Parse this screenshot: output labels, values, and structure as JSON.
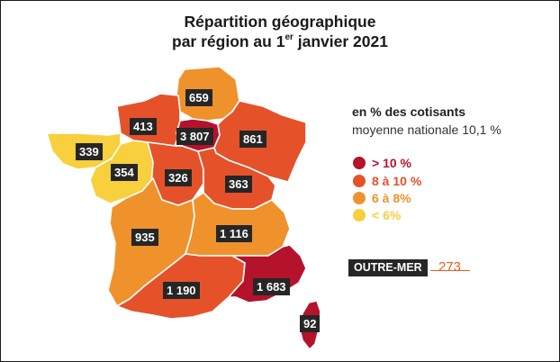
{
  "title": {
    "line1": "Répartition géographique",
    "line2_before": "par région au 1",
    "line2_sup": "er",
    "line2_after": " janvier 2021"
  },
  "colors": {
    "gt10": "#b5122b",
    "8to10": "#e5522a",
    "6to8": "#ef922c",
    "lt6": "#f8cf3d",
    "label_box": "#262626",
    "outre_mer_accent": "#e85d20"
  },
  "legend": {
    "title": "en % des cotisants",
    "subtitle": "moyenne nationale 10,1 %",
    "items": [
      {
        "label": "> 10 %",
        "category": "gt10",
        "color": "#b5122b"
      },
      {
        "label": "8 à 10 %",
        "category": "8to10",
        "color": "#e5522a"
      },
      {
        "label": "6 à 8%",
        "category": "6to8",
        "color": "#ef922c"
      },
      {
        "label": "< 6%",
        "category": "lt6",
        "color": "#f8cf3d"
      }
    ]
  },
  "regions": [
    {
      "id": "hauts-de-france",
      "value": "659",
      "category": "6to8"
    },
    {
      "id": "normandie",
      "value": "413",
      "category": "8to10"
    },
    {
      "id": "ile-de-france",
      "value": "3 807",
      "category": "gt10"
    },
    {
      "id": "grand-est",
      "value": "861",
      "category": "8to10"
    },
    {
      "id": "bretagne",
      "value": "339",
      "category": "lt6"
    },
    {
      "id": "pays-de-la-loire",
      "value": "354",
      "category": "lt6"
    },
    {
      "id": "centre-val-de-loire",
      "value": "326",
      "category": "8to10"
    },
    {
      "id": "bourgogne-franche-comte",
      "value": "363",
      "category": "8to10"
    },
    {
      "id": "nouvelle-aquitaine",
      "value": "935",
      "category": "6to8"
    },
    {
      "id": "auvergne-rhone-alpes",
      "value": "1 116",
      "category": "6to8"
    },
    {
      "id": "occitanie",
      "value": "1 190",
      "category": "8to10"
    },
    {
      "id": "provence-alpes-cote-dazur",
      "value": "1 683",
      "category": "gt10"
    },
    {
      "id": "corse",
      "value": "92",
      "category": "gt10"
    }
  ],
  "outre_mer": {
    "label": "OUTRE-MER",
    "value": "273"
  }
}
